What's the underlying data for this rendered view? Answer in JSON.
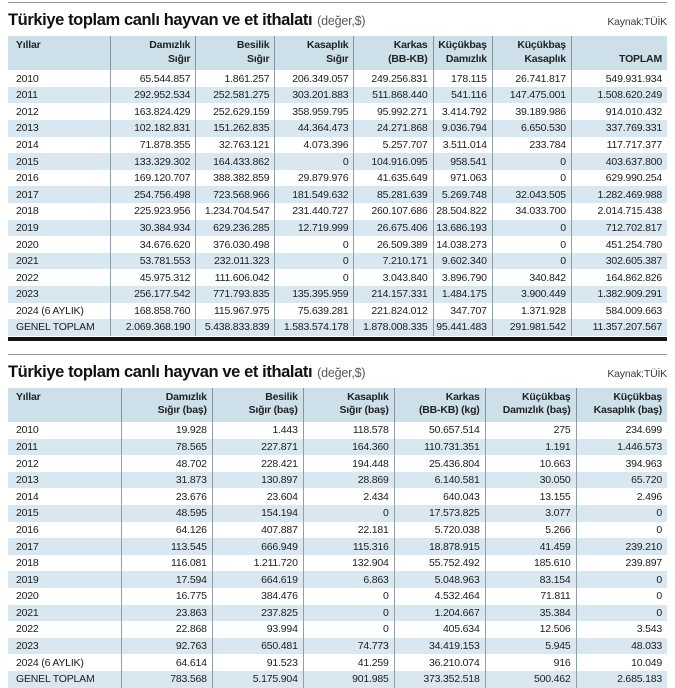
{
  "tables": [
    {
      "title": "Türkiye toplam canlı hayvan ve et ithalatı",
      "subtitle": "(değer,$)",
      "source": "Kaynak:TÜİK",
      "columns": [
        [
          "Yıllar"
        ],
        [
          "Damızlık",
          "Sığır"
        ],
        [
          "Besilik",
          "Sığır"
        ],
        [
          "Kasaplık",
          "Sığır"
        ],
        [
          "Karkas",
          "(BB-KB)"
        ],
        [
          "Küçükbaş",
          "Damızlık"
        ],
        [
          "Küçükbaş",
          "Kasaplık"
        ],
        [
          "TOPLAM"
        ]
      ],
      "col_widths": [
        "15.5%",
        "13%",
        "12%",
        "12%",
        "12%",
        "9%",
        "12%",
        "14.5%"
      ],
      "rows": [
        [
          "2010",
          "65.544.857",
          "1.861.257",
          "206.349.057",
          "249.256.831",
          "178.115",
          "26.741.817",
          "549.931.934"
        ],
        [
          "2011",
          "292.952.534",
          "252.581.275",
          "303.201.883",
          "511.868.440",
          "541.116",
          "147.475.001",
          "1.508.620.249"
        ],
        [
          "2012",
          "163.824.429",
          "252.629.159",
          "358.959.795",
          "95.992.271",
          "3.414.792",
          "39.189.986",
          "914.010.432"
        ],
        [
          "2013",
          "102.182.831",
          "151.262.835",
          "44.364.473",
          "24.271.868",
          "9.036.794",
          "6.650.530",
          "337.769.331"
        ],
        [
          "2014",
          "71.878.355",
          "32.763.121",
          "4.073.396",
          "5.257.707",
          "3.511.014",
          "233.784",
          "117.717.377"
        ],
        [
          "2015",
          "133.329.302",
          "164.433.862",
          "0",
          "104.916.095",
          "958.541",
          "0",
          "403.637.800"
        ],
        [
          "2016",
          "169.120.707",
          "388.382.859",
          "29.879.976",
          "41.635.649",
          "971.063",
          "0",
          "629.990.254"
        ],
        [
          "2017",
          "254.756.498",
          "723.568.966",
          "181.549.632",
          "85.281.639",
          "5.269.748",
          "32.043.505",
          "1.282.469.988"
        ],
        [
          "2018",
          "225.923.956",
          "1.234.704.547",
          "231.440.727",
          "260.107.686",
          "28.504.822",
          "34.033.700",
          "2.014.715.438"
        ],
        [
          "2019",
          "30.384.934",
          "629.236.285",
          "12.719.999",
          "26.675.406",
          "13.686.193",
          "0",
          "712.702.817"
        ],
        [
          "2020",
          "34.676.620",
          "376.030.498",
          "0",
          "26.509.389",
          "14.038.273",
          "0",
          "451.254.780"
        ],
        [
          "2021",
          "53.781.553",
          "232.011.323",
          "0",
          "7.210.171",
          "9.602.340",
          "0",
          "302.605.387"
        ],
        [
          "2022",
          "45.975.312",
          "111.606.042",
          "0",
          "3.043.840",
          "3.896.790",
          "340.842",
          "164.862.826"
        ],
        [
          "2023",
          "256.177.542",
          "771.793.835",
          "135.395.959",
          "214.157.331",
          "1.484.175",
          "3.900.449",
          "1.382.909.291"
        ],
        [
          "2024 (6 AYLIK)",
          "168.858.760",
          "115.967.975",
          "75.639.281",
          "221.824.012",
          "347.707",
          "1.371.928",
          "584.009.663"
        ],
        [
          "GENEL TOPLAM",
          "2.069.368.190",
          "5.438.833.839",
          "1.583.574.178",
          "1.878.008.335",
          "95.441.483",
          "291.981.542",
          "11.357.207.567"
        ]
      ]
    },
    {
      "title": "Türkiye toplam canlı hayvan ve et ithalatı",
      "subtitle": "(değer,$)",
      "source": "Kaynak:TÜİK",
      "columns": [
        [
          "Yıllar"
        ],
        [
          "Damızlık",
          "Sığır (baş)"
        ],
        [
          "Besilik",
          "Sığır (baş)"
        ],
        [
          "Kasaplık",
          "Sığır (baş)"
        ],
        [
          "Karkas",
          "(BB-KB) (kg)"
        ],
        [
          "Küçükbaş",
          "Damızlık (baş)"
        ],
        [
          "Küçükbaş",
          "Kasaplık (baş)"
        ]
      ],
      "col_widths": [
        "17.2%",
        "13.8%",
        "13.8%",
        "13.8%",
        "13.8%",
        "13.8%",
        "13.8%"
      ],
      "rows": [
        [
          "2010",
          "19.928",
          "1.443",
          "118.578",
          "50.657.514",
          "275",
          "234.699"
        ],
        [
          "2011",
          "78.565",
          "227.871",
          "164.360",
          "110.731.351",
          "1.191",
          "1.446.573"
        ],
        [
          "2012",
          "48.702",
          "228.421",
          "194.448",
          "25.436.804",
          "10.663",
          "394.963"
        ],
        [
          "2013",
          "31.873",
          "130.897",
          "28.869",
          "6.140.581",
          "30.050",
          "65.720"
        ],
        [
          "2014",
          "23.676",
          "23.604",
          "2.434",
          "640.043",
          "13.155",
          "2.496"
        ],
        [
          "2015",
          "48.595",
          "154.194",
          "0",
          "17.573.825",
          "3.077",
          "0"
        ],
        [
          "2016",
          "64.126",
          "407.887",
          "22.181",
          "5.720.038",
          "5.266",
          "0"
        ],
        [
          "2017",
          "113.545",
          "666.949",
          "115.316",
          "18.878.915",
          "41.459",
          "239.210"
        ],
        [
          "2018",
          "116.081",
          "1.211.720",
          "132.904",
          "55.752.492",
          "185.610",
          "239.897"
        ],
        [
          "2019",
          "17.594",
          "664.619",
          "6.863",
          "5.048.963",
          "83.154",
          "0"
        ],
        [
          "2020",
          "16.775",
          "384.476",
          "0",
          "4.532.464",
          "71.811",
          "0"
        ],
        [
          "2021",
          "23.863",
          "237.825",
          "0",
          "1.204.667",
          "35.384",
          "0"
        ],
        [
          "2022",
          "22.868",
          "93.994",
          "0",
          "405.634",
          "12.506",
          "3.543"
        ],
        [
          "2023",
          "92.763",
          "650.481",
          "74.773",
          "34.419.153",
          "5.945",
          "48.033"
        ],
        [
          "2024 (6 AYLIK)",
          "64.614",
          "91.523",
          "41.259",
          "36.210.074",
          "916",
          "10.049"
        ],
        [
          "GENEL TOPLAM",
          "783.568",
          "5.175.904",
          "901.985",
          "373.352.518",
          "500.462",
          "2.685.183"
        ]
      ]
    }
  ]
}
